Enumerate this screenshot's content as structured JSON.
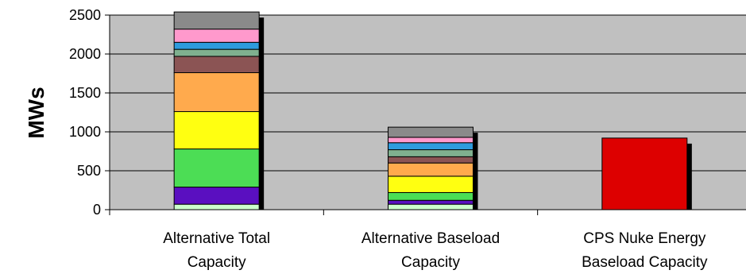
{
  "chart_data": {
    "type": "bar",
    "stacked": true,
    "ylabel": "MWs",
    "xlabel": "",
    "title": "",
    "ylim": [
      0,
      2500
    ],
    "yticks": [
      0,
      500,
      1000,
      1500,
      2000,
      2500
    ],
    "grid": true,
    "plot_background": "#c0c0c0",
    "categories": [
      [
        "Alternative Total",
        "Capacity"
      ],
      [
        "Alternative Baseload",
        "Capacity"
      ],
      [
        "CPS Nuke Energy",
        "Baseload Capacity"
      ]
    ],
    "series": [
      {
        "color": "#ccffcc",
        "values": [
          70,
          70,
          0
        ]
      },
      {
        "color": "#5a0fc0",
        "values": [
          220,
          50,
          0
        ]
      },
      {
        "color": "#4cdd55",
        "values": [
          490,
          100,
          0
        ]
      },
      {
        "color": "#ffff11",
        "values": [
          480,
          210,
          0
        ]
      },
      {
        "color": "#ffaa4d",
        "values": [
          500,
          170,
          0
        ]
      },
      {
        "color": "#8b5454",
        "values": [
          210,
          80,
          0
        ]
      },
      {
        "color": "#7fb08f",
        "values": [
          90,
          90,
          0
        ]
      },
      {
        "color": "#2e9bdd",
        "values": [
          90,
          90,
          0
        ]
      },
      {
        "color": "#ff99cc",
        "values": [
          170,
          70,
          0
        ]
      },
      {
        "color": "#8a8a8a",
        "values": [
          220,
          130,
          0
        ]
      },
      {
        "color": "#dd0000",
        "values": [
          0,
          0,
          920
        ]
      }
    ]
  }
}
